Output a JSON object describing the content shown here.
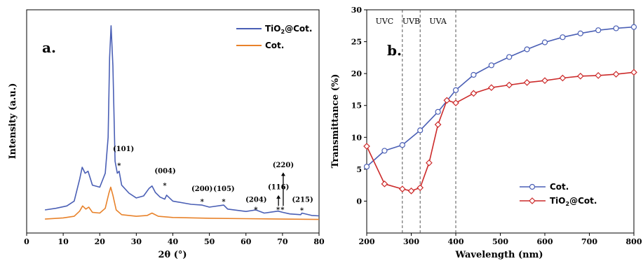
{
  "chart_data": [
    {
      "type": "line",
      "panel_label": "a.",
      "xlabel": "2θ (°)",
      "ylabel": "Intensity (a.u.)",
      "xlim": [
        0,
        80
      ],
      "xticks": [
        "0",
        "10",
        "20",
        "30",
        "40",
        "50",
        "60",
        "70",
        "80"
      ],
      "legend_placement": "top-right",
      "series": [
        {
          "name": "TiO2@Cot.",
          "color": "#4a5fb5",
          "x": [
            5,
            8,
            11,
            13,
            14.5,
            15.2,
            16,
            16.8,
            18,
            20,
            21.5,
            22.3,
            22.7,
            23.1,
            23.6,
            24.2,
            24.8,
            25.3,
            26,
            28,
            30,
            32,
            33.5,
            34.3,
            35.2,
            36.5,
            37.8,
            38.3,
            40,
            45,
            48,
            50,
            53.9,
            55,
            60,
            62.7,
            65,
            68.8,
            70,
            72,
            75,
            75.3,
            78,
            80
          ],
          "y": [
            5.8,
            6.2,
            6.8,
            8,
            13.5,
            16.5,
            15,
            15.5,
            12,
            11.5,
            15,
            24,
            44,
            52,
            42,
            18,
            15,
            15.5,
            12,
            10,
            8.8,
            9.3,
            11.2,
            11.8,
            10.2,
            9,
            8.5,
            9.5,
            8,
            7.2,
            7,
            6.5,
            7,
            6,
            5.4,
            5.8,
            5,
            5.5,
            5.2,
            4.8,
            4.6,
            5,
            4.4,
            4.3
          ]
        },
        {
          "name": "Cot.",
          "color": "#e8822a",
          "x": [
            5,
            10,
            13,
            14.5,
            15.3,
            16.2,
            17,
            18,
            20,
            21.5,
            22.5,
            23,
            23.6,
            24.5,
            26,
            30,
            33,
            34.3,
            36,
            40,
            50,
            60,
            70,
            80
          ],
          "y": [
            3.5,
            3.8,
            4.2,
            5.5,
            6.8,
            6,
            6.5,
            5.2,
            5,
            6.2,
            10,
            11.5,
            9.5,
            5.8,
            4.6,
            4.2,
            4.4,
            5,
            4.2,
            3.9,
            3.7,
            3.6,
            3.5,
            3.4
          ]
        }
      ],
      "annotations": [
        "(101)",
        "(004)",
        "(200)",
        "(105)",
        "(204)",
        "(116)",
        "(220)",
        "(215)"
      ]
    },
    {
      "type": "line",
      "panel_label": "b.",
      "xlabel": "Wavelength (nm)",
      "ylabel": "Transmittance (%)",
      "xlim": [
        200,
        800
      ],
      "ylim": [
        -5,
        30
      ],
      "xticks": [
        "200",
        "300",
        "400",
        "500",
        "600",
        "700",
        "800"
      ],
      "yticks": [
        "0",
        "5",
        "10",
        "15",
        "20",
        "25",
        "30"
      ],
      "legend_placement": "bottom-right",
      "regions": [
        "UVC",
        "UVB",
        "UVA"
      ],
      "region_bounds_nm": [
        280,
        320,
        400
      ],
      "series": [
        {
          "name": "Cot.",
          "color": "#4a5fb5",
          "x": [
            200,
            240,
            280,
            320,
            360,
            400,
            440,
            480,
            520,
            560,
            600,
            640,
            680,
            720,
            760,
            800
          ],
          "y": [
            5.4,
            7.9,
            8.8,
            11.1,
            14,
            17.4,
            19.8,
            21.3,
            22.6,
            23.8,
            24.9,
            25.7,
            26.3,
            26.8,
            27.1,
            27.3
          ]
        },
        {
          "name": "TiO2@Cot.",
          "color": "#cc2a2a",
          "x": [
            200,
            240,
            280,
            300,
            320,
            340,
            360,
            380,
            400,
            440,
            480,
            520,
            560,
            600,
            640,
            680,
            720,
            760,
            800
          ],
          "y": [
            8.6,
            2.7,
            1.9,
            1.6,
            2.1,
            6,
            12,
            15.8,
            15.4,
            16.9,
            17.8,
            18.2,
            18.6,
            18.9,
            19.3,
            19.6,
            19.7,
            19.9,
            20.2
          ]
        }
      ]
    }
  ],
  "legend_a": {
    "tio2_prefix": "TiO",
    "tio2_sub": "2",
    "tio2_suffix": "@Cot.",
    "cot": "Cot."
  },
  "legend_b": {
    "cot": "Cot.",
    "tio2_prefix": "TiO",
    "tio2_sub": "2",
    "tio2_suffix": "@Cot."
  }
}
